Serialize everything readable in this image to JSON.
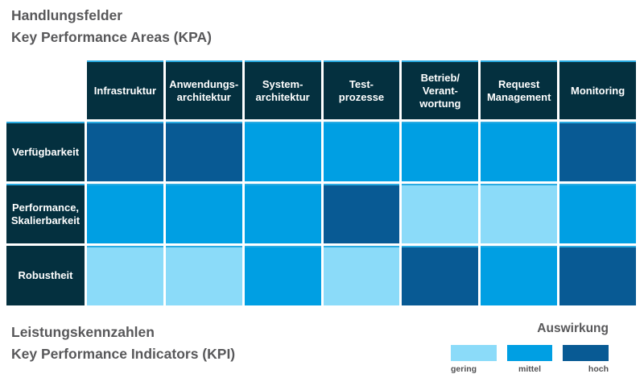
{
  "kpa": {
    "line1": "Handlungsfelder",
    "line2": "Key Performance Areas (KPA)"
  },
  "kpi": {
    "line1": "Leistungskennzahlen",
    "line2": "Key Performance Indicators (KPI)"
  },
  "legend": {
    "title": "Auswirkung",
    "items": [
      {
        "label": "gering",
        "color": "#8BDBF9"
      },
      {
        "label": "mittel",
        "color": "#009FE3"
      },
      {
        "label": "hoch",
        "color": "#085A94"
      }
    ]
  },
  "colors": {
    "header_bg": "#04303F",
    "header_text": "#FFFFFF",
    "cell_top_border": "#29ABE2",
    "title_text": "#58585A",
    "gering": "#8BDBF9",
    "mittel": "#009FE3",
    "hoch": "#085A94"
  },
  "chart_data": {
    "type": "heatmap",
    "title": "Handlungsfelder / Key Performance Areas (KPA) vs. Leistungskennzahlen / Key Performance Indicators (KPI)",
    "legend_title": "Auswirkung",
    "legend_position": "bottom-right",
    "columns": [
      "Infrastruktur",
      "Anwendungs-\narchitektur",
      "System-\narchitektur",
      "Test-\nprozesse",
      "Betrieb/\nVerant-\nwortung",
      "Request\nManagement",
      "Monitoring"
    ],
    "rows": [
      "Verfügbarkeit",
      "Performance,\nSkalierbarkeit",
      "Robustheit"
    ],
    "levels": [
      "gering",
      "mittel",
      "hoch"
    ],
    "values": [
      [
        "hoch",
        "hoch",
        "mittel",
        "mittel",
        "mittel",
        "mittel",
        "hoch"
      ],
      [
        "mittel",
        "mittel",
        "mittel",
        "hoch",
        "gering",
        "gering",
        "mittel"
      ],
      [
        "gering",
        "gering",
        "mittel",
        "gering",
        "hoch",
        "mittel",
        "hoch"
      ]
    ]
  }
}
